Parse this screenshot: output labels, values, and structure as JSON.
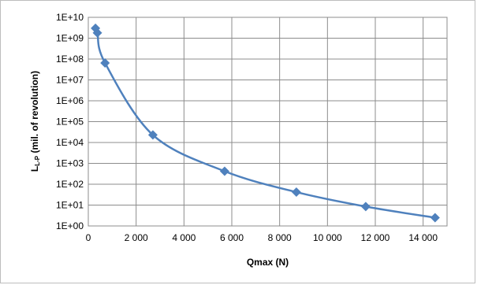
{
  "chart_data": {
    "type": "scatter",
    "title": "",
    "xlabel": "Qmax (N)",
    "ylabel": "L",
    "ylabel_sub": "L-P",
    "ylabel_rest": " (mil. of revolution)",
    "xlim": [
      0,
      15000
    ],
    "ylim": [
      1,
      10000000000
    ],
    "yscale": "log",
    "grid": true,
    "legend": "none",
    "x_ticks": [
      0,
      2000,
      4000,
      6000,
      8000,
      10000,
      12000,
      14000
    ],
    "x_tick_labels": [
      "0",
      "2 000",
      "4 000",
      "6 000",
      "8 000",
      "10 000",
      "12 000",
      "14 000"
    ],
    "y_ticks": [
      1,
      10,
      100,
      1000,
      10000,
      100000,
      1000000,
      10000000,
      100000000,
      1000000000,
      10000000000
    ],
    "y_tick_labels": [
      "1E+00",
      "1E+01",
      "1E+02",
      "1E+03",
      "1E+04",
      "1E+05",
      "1E+06",
      "1E+07",
      "1E+08",
      "1E+09",
      "1E+10"
    ],
    "series": [
      {
        "color": "#4f81bd",
        "marker": "diamond",
        "line": "smooth",
        "x": [
          300,
          380,
          700,
          2700,
          5700,
          8700,
          11600,
          14500
        ],
        "y": [
          3000000000,
          1800000000,
          65000000,
          23000,
          420,
          42,
          8.5,
          2.5
        ]
      }
    ]
  }
}
